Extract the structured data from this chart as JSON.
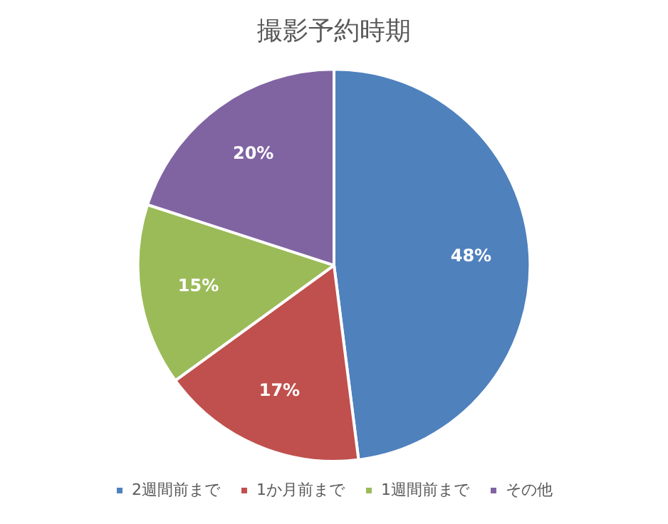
{
  "chart_data": {
    "type": "pie",
    "title": "撮影予約時期",
    "categories": [
      "2週間前まで",
      "1か月前まで",
      "1週間前まで",
      "その他"
    ],
    "values": [
      48,
      17,
      15,
      20
    ],
    "colors": [
      "#4f81bd",
      "#c0504d",
      "#9bbb59",
      "#8064a2"
    ],
    "value_labels": [
      "48%",
      "17%",
      "15%",
      "20%"
    ],
    "legend": "bottom"
  }
}
